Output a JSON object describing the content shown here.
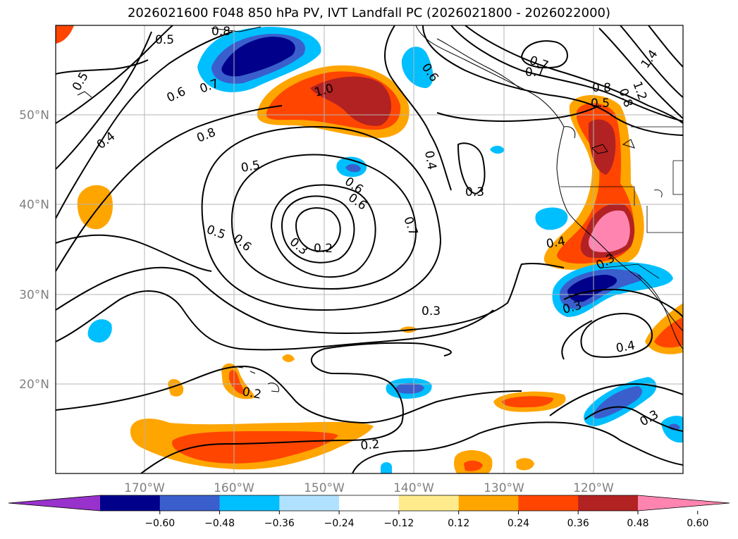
{
  "title": "2026021600 F048 850 hPa PV, IVT Landfall PC (2026021800 - 2026022000)",
  "axes": {
    "longitude_labels": [
      "170°W",
      "160°W",
      "150°W",
      "140°W",
      "130°W",
      "120°W"
    ],
    "latitude_labels": [
      "50°N",
      "40°N",
      "30°N",
      "20°N"
    ]
  },
  "contour_labels": [
    "0.5",
    "0.8",
    "0.5",
    "0.6",
    "0.7",
    "0.4",
    "0.8",
    "0.5",
    "1.0",
    "0.6",
    "0.7",
    "0.6",
    "0.4",
    "0.3",
    "0.6",
    "0.7",
    "0.5",
    "0.6",
    "0.3",
    "0.2",
    "0.3",
    "0.2",
    "0.2",
    "0.4",
    "0.3",
    "0.4",
    "0.3",
    "0.7",
    "0.8",
    "0.8",
    "1.2",
    "1.4",
    "0.5",
    "0.3"
  ],
  "colorbar": {
    "colors": [
      "#9932cc",
      "#00008b",
      "#3a5fcd",
      "#00bfff",
      "#b0e2ff",
      "#ffffff",
      "#ffeb8c",
      "#ffa500",
      "#ff4500",
      "#b22222",
      "#ff85b0"
    ],
    "tick_labels": [
      "−0.60",
      "−0.48",
      "−0.36",
      "−0.24",
      "−0.12",
      "0.12",
      "0.24",
      "0.36",
      "0.48",
      "0.60"
    ]
  }
}
